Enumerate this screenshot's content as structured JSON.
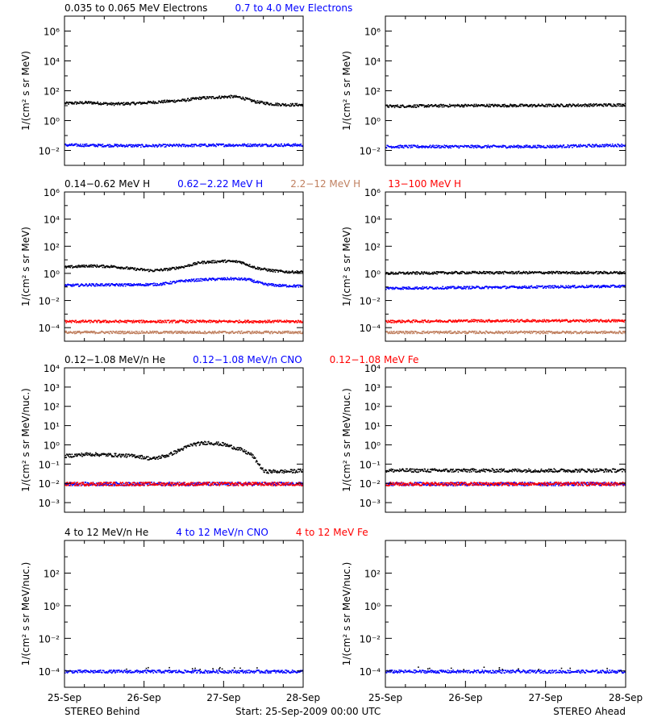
{
  "figure": {
    "x_ticks": [
      "25-Sep",
      "26-Sep",
      "27-Sep",
      "28-Sep"
    ],
    "footer_left": "STEREO Behind",
    "footer_center": "Start: 25-Sep-2009 00:00 UTC",
    "footer_right": "STEREO Ahead"
  },
  "colors": {
    "black": "#000000",
    "blue": "#0000ff",
    "tan": "#c08060",
    "red": "#ff0000"
  },
  "chart_data": [
    {
      "type": "scatter",
      "panel": "row1-left",
      "headers": [
        {
          "text": "0.035 to 0.065 MeV Electrons",
          "color": "#000000"
        },
        {
          "text": "0.7 to 4.0 Mev Electrons",
          "color": "#0000ff"
        }
      ],
      "ylabel": "1/(cm² s sr MeV)",
      "yscale": "log",
      "ylim_exp": [
        -3,
        7
      ],
      "y_tick_exps": [
        -2,
        0,
        2,
        4,
        6
      ],
      "xlim_days": [
        0,
        3
      ],
      "x_ticks": [
        "25-Sep",
        "26-Sep",
        "27-Sep",
        "28-Sep"
      ],
      "series": [
        {
          "color": "#000000",
          "x_days": [
            0,
            0.3,
            0.6,
            0.9,
            1.2,
            1.5,
            1.7,
            1.9,
            2.1,
            2.2,
            2.4,
            2.6,
            2.8,
            3.0
          ],
          "y_exp": [
            1.2,
            1.25,
            1.15,
            1.2,
            1.3,
            1.4,
            1.55,
            1.6,
            1.65,
            1.6,
            1.3,
            1.15,
            1.1,
            1.1
          ]
        },
        {
          "color": "#0000ff",
          "x_days": [
            0,
            1.0,
            2.0,
            3.0
          ],
          "y_exp": [
            -1.6,
            -1.65,
            -1.6,
            -1.6
          ]
        }
      ]
    },
    {
      "type": "scatter",
      "panel": "row1-right",
      "headers": [],
      "ylabel": "1/(cm² s sr MeV)",
      "yscale": "log",
      "ylim_exp": [
        -3,
        7
      ],
      "y_tick_exps": [
        -2,
        0,
        2,
        4,
        6
      ],
      "xlim_days": [
        0,
        3
      ],
      "x_ticks": [
        "25-Sep",
        "26-Sep",
        "27-Sep",
        "28-Sep"
      ],
      "series": [
        {
          "color": "#000000",
          "x_days": [
            0,
            1.0,
            2.0,
            3.0
          ],
          "y_exp": [
            1.0,
            1.05,
            1.05,
            1.1
          ]
        },
        {
          "color": "#0000ff",
          "x_days": [
            0,
            1.0,
            2.0,
            3.0
          ],
          "y_exp": [
            -1.7,
            -1.7,
            -1.7,
            -1.6
          ]
        }
      ]
    },
    {
      "type": "scatter",
      "panel": "row2-left",
      "headers": [
        {
          "text": "0.14−0.62 MeV H",
          "color": "#000000"
        },
        {
          "text": "0.62−2.22 MeV H",
          "color": "#0000ff"
        },
        {
          "text": "2.2−12 MeV H",
          "color": "#c08060"
        },
        {
          "text": "13−100 MeV H",
          "color": "#ff0000"
        }
      ],
      "ylabel": "1/(cm² s sr MeV)",
      "yscale": "log",
      "ylim_exp": [
        -5,
        6
      ],
      "y_tick_exps": [
        -4,
        -2,
        0,
        2,
        4,
        6
      ],
      "xlim_days": [
        0,
        3
      ],
      "x_ticks": [
        "25-Sep",
        "26-Sep",
        "27-Sep",
        "28-Sep"
      ],
      "series": [
        {
          "color": "#000000",
          "x_days": [
            0,
            0.3,
            0.6,
            0.9,
            1.1,
            1.3,
            1.5,
            1.7,
            2.0,
            2.2,
            2.4,
            2.6,
            2.8,
            3.0
          ],
          "y_exp": [
            0.5,
            0.6,
            0.55,
            0.35,
            0.25,
            0.35,
            0.55,
            0.85,
            0.95,
            0.9,
            0.45,
            0.25,
            0.15,
            0.15
          ]
        },
        {
          "color": "#0000ff",
          "x_days": [
            0,
            0.3,
            0.6,
            0.9,
            1.2,
            1.5,
            1.8,
            2.1,
            2.3,
            2.5,
            2.7,
            3.0
          ],
          "y_exp": [
            -0.85,
            -0.8,
            -0.8,
            -0.8,
            -0.75,
            -0.5,
            -0.4,
            -0.35,
            -0.4,
            -0.75,
            -0.85,
            -0.9
          ]
        },
        {
          "color": "#ff0000",
          "x_days": [
            0,
            1.0,
            2.0,
            3.0
          ],
          "y_exp": [
            -3.5,
            -3.5,
            -3.5,
            -3.5
          ]
        },
        {
          "color": "#c08060",
          "x_days": [
            0,
            1.0,
            2.0,
            3.0
          ],
          "y_exp": [
            -4.3,
            -4.3,
            -4.3,
            -4.3
          ]
        }
      ]
    },
    {
      "type": "scatter",
      "panel": "row2-right",
      "headers": [],
      "ylabel": "1/(cm² s sr MeV)",
      "yscale": "log",
      "ylim_exp": [
        -5,
        6
      ],
      "y_tick_exps": [
        -4,
        -2,
        0,
        2,
        4,
        6
      ],
      "xlim_days": [
        0,
        3
      ],
      "x_ticks": [
        "25-Sep",
        "26-Sep",
        "27-Sep",
        "28-Sep"
      ],
      "series": [
        {
          "color": "#000000",
          "x_days": [
            0,
            1.0,
            2.0,
            3.0
          ],
          "y_exp": [
            0.05,
            0.1,
            0.1,
            0.1
          ]
        },
        {
          "color": "#0000ff",
          "x_days": [
            0,
            1.0,
            2.0,
            3.0
          ],
          "y_exp": [
            -1.05,
            -1.0,
            -0.95,
            -0.9
          ]
        },
        {
          "color": "#ff0000",
          "x_days": [
            0,
            1.0,
            2.0,
            3.0
          ],
          "y_exp": [
            -3.5,
            -3.45,
            -3.45,
            -3.45
          ]
        },
        {
          "color": "#c08060",
          "x_days": [
            0,
            1.0,
            2.0,
            3.0
          ],
          "y_exp": [
            -4.3,
            -4.3,
            -4.3,
            -4.3
          ]
        }
      ]
    },
    {
      "type": "scatter",
      "panel": "row3-left",
      "headers": [
        {
          "text": "0.12−1.08 MeV/n He",
          "color": "#000000"
        },
        {
          "text": "0.12−1.08 MeV/n CNO",
          "color": "#0000ff"
        },
        {
          "text": "0.12−1.08 MeV Fe",
          "color": "#ff0000"
        }
      ],
      "ylabel": "1/(cm² s sr MeV/nuc.)",
      "yscale": "log",
      "ylim_exp": [
        -3.5,
        4
      ],
      "y_tick_exps": [
        -3,
        -2,
        -1,
        0,
        1,
        2,
        3,
        4
      ],
      "xlim_days": [
        0,
        3
      ],
      "x_ticks": [
        "25-Sep",
        "26-Sep",
        "27-Sep",
        "28-Sep"
      ],
      "series": [
        {
          "color": "#000000",
          "x_days": [
            0,
            0.3,
            0.6,
            0.9,
            1.1,
            1.3,
            1.6,
            1.8,
            2.0,
            2.2,
            2.35,
            2.5,
            2.8,
            3.0
          ],
          "y_exp": [
            -0.55,
            -0.45,
            -0.5,
            -0.55,
            -0.7,
            -0.5,
            0.05,
            0.15,
            0.05,
            -0.2,
            -0.5,
            -1.35,
            -1.35,
            -1.3
          ]
        },
        {
          "color": "#0000ff",
          "x_days": [
            0,
            1.0,
            2.0,
            3.0
          ],
          "y_exp": [
            -2.0,
            -2.0,
            -2.0,
            -2.0
          ]
        },
        {
          "color": "#ff0000",
          "x_days": [
            0,
            1.0,
            2.0,
            3.0
          ],
          "y_exp": [
            -2.0,
            -2.0,
            -2.0,
            -2.0
          ]
        }
      ]
    },
    {
      "type": "scatter",
      "panel": "row3-right",
      "headers": [],
      "ylabel": "1/(cm² s sr MeV/nuc.)",
      "yscale": "log",
      "ylim_exp": [
        -3.5,
        4
      ],
      "y_tick_exps": [
        -3,
        -2,
        -1,
        0,
        1,
        2,
        3,
        4
      ],
      "xlim_days": [
        0,
        3
      ],
      "x_ticks": [
        "25-Sep",
        "26-Sep",
        "27-Sep",
        "28-Sep"
      ],
      "series": [
        {
          "color": "#000000",
          "x_days": [
            0,
            1.0,
            2.0,
            3.0
          ],
          "y_exp": [
            -1.3,
            -1.3,
            -1.3,
            -1.3
          ]
        },
        {
          "color": "#0000ff",
          "x_days": [
            0,
            1.0,
            2.0,
            3.0
          ],
          "y_exp": [
            -2.0,
            -2.0,
            -2.0,
            -2.0
          ]
        },
        {
          "color": "#ff0000",
          "x_days": [
            0,
            1.0,
            2.0,
            3.0
          ],
          "y_exp": [
            -2.0,
            -2.0,
            -2.0,
            -2.0
          ]
        }
      ]
    },
    {
      "type": "scatter",
      "panel": "row4-left",
      "headers": [
        {
          "text": "4 to 12 MeV/n He",
          "color": "#000000"
        },
        {
          "text": "4 to 12 MeV/n CNO",
          "color": "#0000ff"
        },
        {
          "text": "4 to 12 MeV Fe",
          "color": "#ff0000"
        }
      ],
      "ylabel": "1/(cm² s sr MeV/nuc.)",
      "yscale": "log",
      "ylim_exp": [
        -5,
        4
      ],
      "y_tick_exps": [
        -4,
        -2,
        0,
        2
      ],
      "xlim_days": [
        0,
        3
      ],
      "x_ticks": [
        "25-Sep",
        "26-Sep",
        "27-Sep",
        "28-Sep"
      ],
      "series": [
        {
          "color": "#0000ff",
          "x_days": [
            0,
            1.0,
            2.0,
            3.0
          ],
          "y_exp": [
            -4.0,
            -4.0,
            -4.0,
            -4.0
          ]
        },
        {
          "color": "#000000",
          "x_days": [
            0.6,
            0.9,
            1.2,
            1.5,
            1.8,
            2.1,
            2.4,
            2.7
          ],
          "y_exp": [
            -3.8,
            -3.85,
            -3.8,
            -3.85,
            -3.8,
            -3.85,
            -3.8,
            -3.85
          ]
        }
      ]
    },
    {
      "type": "scatter",
      "panel": "row4-right",
      "headers": [],
      "ylabel": "1/(cm² s sr MeV/nuc.)",
      "yscale": "log",
      "ylim_exp": [
        -5,
        4
      ],
      "y_tick_exps": [
        -4,
        -2,
        0,
        2
      ],
      "xlim_days": [
        0,
        3
      ],
      "x_ticks": [
        "25-Sep",
        "26-Sep",
        "27-Sep",
        "28-Sep"
      ],
      "series": [
        {
          "color": "#0000ff",
          "x_days": [
            0,
            1.0,
            2.0,
            3.0
          ],
          "y_exp": [
            -4.0,
            -4.0,
            -4.0,
            -4.0
          ]
        },
        {
          "color": "#000000",
          "x_days": [
            0.4,
            0.8,
            1.2,
            1.6,
            2.0,
            2.4,
            2.8
          ],
          "y_exp": [
            -3.8,
            -3.85,
            -3.8,
            -3.85,
            -3.8,
            -3.85,
            -3.8
          ]
        }
      ]
    }
  ]
}
